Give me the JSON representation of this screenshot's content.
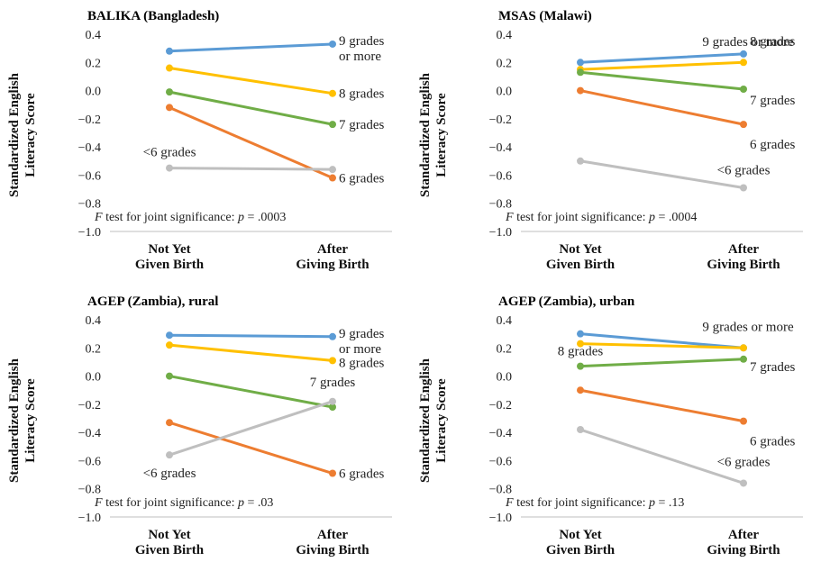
{
  "chart_data": [
    {
      "type": "line",
      "title": "BALIKA (Bangladesh)",
      "ylabel_lines": [
        "Standardized English",
        "Literacy Score"
      ],
      "categories": [
        [
          "Not Yet",
          "Given Birth"
        ],
        [
          "After",
          "Giving Birth"
        ]
      ],
      "ylim": [
        -1.0,
        0.4
      ],
      "yticks": [
        "0.4",
        "0.2",
        "0.0",
        "−0.2",
        "−0.4",
        "−0.6",
        "−0.8",
        "−1.0"
      ],
      "grid": false,
      "annotation": {
        "italic": "F",
        "pre": " test for joint significance: ",
        "italic2": "p",
        "post": " = .0003"
      },
      "series": [
        {
          "name": "9 grades or more",
          "label_lines": [
            "9 grades",
            "or more"
          ],
          "color": "#5b9bd5",
          "values": [
            0.28,
            0.33
          ]
        },
        {
          "name": "8 grades",
          "label_lines": [
            "8 grades"
          ],
          "color": "#ffc000",
          "values": [
            0.16,
            -0.02
          ]
        },
        {
          "name": "7 grades",
          "label_lines": [
            "7 grades"
          ],
          "color": "#70ad47",
          "values": [
            -0.01,
            -0.24
          ]
        },
        {
          "name": "6 grades",
          "label_lines": [
            "6 grades"
          ],
          "color": "#ed7d31",
          "values": [
            -0.12,
            -0.62
          ]
        },
        {
          "name": "<6 grades",
          "label_lines": [
            "<6 grades"
          ],
          "color": "#bfbfbf",
          "values": [
            -0.55,
            -0.56
          ]
        }
      ]
    },
    {
      "type": "line",
      "title": "MSAS (Malawi)",
      "ylabel_lines": [
        "Standardized English",
        "Literacy Score"
      ],
      "categories": [
        [
          "Not Yet",
          "Given Birth"
        ],
        [
          "After",
          "Giving Birth"
        ]
      ],
      "ylim": [
        -1.0,
        0.4
      ],
      "yticks": [
        "0.4",
        "0.2",
        "0.0",
        "−0.2",
        "−0.4",
        "−0.6",
        "−0.8",
        "−1.0"
      ],
      "grid": false,
      "annotation": {
        "italic": "F",
        "pre": " test for joint significance: ",
        "italic2": "p",
        "post": " = .0004"
      },
      "series": [
        {
          "name": "9 grades or more",
          "label_lines": [
            "9 grades or more"
          ],
          "color": "#5b9bd5",
          "values": [
            0.2,
            0.26
          ]
        },
        {
          "name": "8 grades",
          "label_lines": [
            "8 grades"
          ],
          "color": "#ffc000",
          "values": [
            0.15,
            0.2
          ]
        },
        {
          "name": "7 grades",
          "label_lines": [
            "7 grades"
          ],
          "color": "#70ad47",
          "values": [
            0.13,
            0.01
          ]
        },
        {
          "name": "6 grades",
          "label_lines": [
            "6 grades"
          ],
          "color": "#ed7d31",
          "values": [
            0.0,
            -0.24
          ]
        },
        {
          "name": "<6 grades",
          "label_lines": [
            "<6 grades"
          ],
          "color": "#bfbfbf",
          "values": [
            -0.5,
            -0.69
          ]
        }
      ]
    },
    {
      "type": "line",
      "title": "AGEP (Zambia), rural",
      "ylabel_lines": [
        "Standardized English",
        "Literacy Score"
      ],
      "categories": [
        [
          "Not Yet",
          "Given Birth"
        ],
        [
          "After",
          "Giving Birth"
        ]
      ],
      "ylim": [
        -1.0,
        0.4
      ],
      "yticks": [
        "0.4",
        "0.2",
        "0.0",
        "−0.2",
        "−0.4",
        "−0.6",
        "−0.8",
        "−1.0"
      ],
      "grid": false,
      "annotation": {
        "italic": "F",
        "pre": " test for joint significance: ",
        "italic2": "p",
        "post": " = .03"
      },
      "series": [
        {
          "name": "9 grades or more",
          "label_lines": [
            "9 grades",
            "or more"
          ],
          "color": "#5b9bd5",
          "values": [
            0.29,
            0.28
          ]
        },
        {
          "name": "8 grades",
          "label_lines": [
            "8 grades"
          ],
          "color": "#ffc000",
          "values": [
            0.22,
            0.11
          ]
        },
        {
          "name": "7 grades",
          "label_lines": [
            "7 grades"
          ],
          "color": "#70ad47",
          "values": [
            0.0,
            -0.22
          ]
        },
        {
          "name": "6 grades",
          "label_lines": [
            "6 grades"
          ],
          "color": "#ed7d31",
          "values": [
            -0.33,
            -0.69
          ]
        },
        {
          "name": "<6 grades",
          "label_lines": [
            "<6 grades"
          ],
          "color": "#bfbfbf",
          "values": [
            -0.56,
            -0.18
          ]
        }
      ]
    },
    {
      "type": "line",
      "title": "AGEP (Zambia), urban",
      "ylabel_lines": [
        "Standardized English",
        "Literacy Score"
      ],
      "categories": [
        [
          "Not Yet",
          "Given Birth"
        ],
        [
          "After",
          "Giving Birth"
        ]
      ],
      "ylim": [
        -1.0,
        0.4
      ],
      "yticks": [
        "0.4",
        "0.2",
        "0.0",
        "−0.2",
        "−0.4",
        "−0.6",
        "−0.8",
        "−1.0"
      ],
      "grid": false,
      "annotation": {
        "italic": "F",
        "pre": " test for joint significance: ",
        "italic2": "p",
        "post": " = .13"
      },
      "series": [
        {
          "name": "9 grades or more",
          "label_lines": [
            "9 grades or more"
          ],
          "color": "#5b9bd5",
          "values": [
            0.3,
            0.2
          ]
        },
        {
          "name": "8 grades",
          "label_lines": [
            "8 grades"
          ],
          "color": "#ffc000",
          "values": [
            0.23,
            0.2
          ]
        },
        {
          "name": "7 grades",
          "label_lines": [
            "7 grades"
          ],
          "color": "#70ad47",
          "values": [
            0.07,
            0.12
          ]
        },
        {
          "name": "6 grades",
          "label_lines": [
            "6 grades"
          ],
          "color": "#ed7d31",
          "values": [
            -0.1,
            -0.32
          ]
        },
        {
          "name": "<6 grades",
          "label_lines": [
            "<6 grades"
          ],
          "color": "#bfbfbf",
          "values": [
            -0.38,
            -0.76
          ]
        }
      ]
    }
  ]
}
